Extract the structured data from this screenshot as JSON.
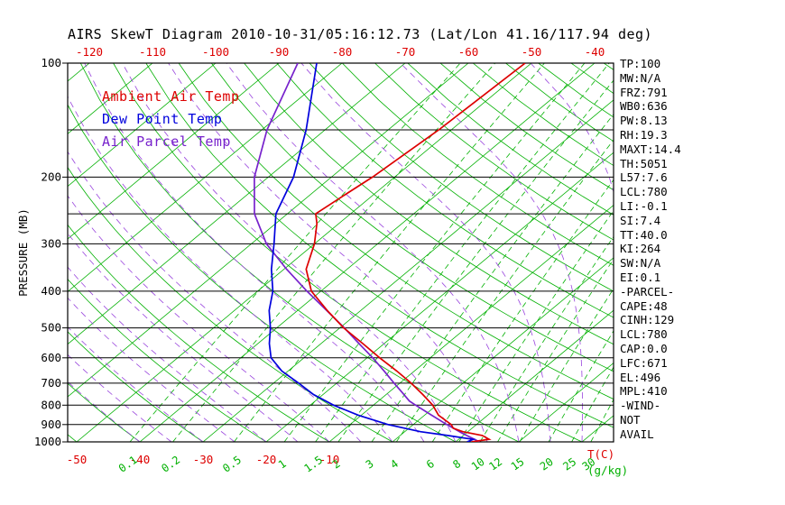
{
  "title": "AIRS SkewT Diagram 2010-10-31/05:16:12.73 (Lat/Lon 41.16/117.94 deg)",
  "colors": {
    "temp_curve": "#dd0000",
    "dewpoint_curve": "#0000dd",
    "parcel_curve": "#7722cc",
    "isotherm": "#00b000",
    "mixing_ratio": "#00b000",
    "moist_adiabat": "#9944dd",
    "axis_text_temp": "#dd0000",
    "axis_text_mixing": "#00b000",
    "text": "#000000"
  },
  "axes": {
    "pressure_label": "PRESSURE (MB)",
    "pressure_ticks": [
      100,
      200,
      300,
      400,
      500,
      600,
      700,
      800,
      900,
      1000
    ],
    "pressure_gridlines": [
      100,
      150,
      200,
      250,
      300,
      400,
      500,
      600,
      700,
      800,
      900,
      1000
    ],
    "top_temp_labels": [
      -120,
      -110,
      -100,
      -90,
      -80,
      -70,
      -60,
      -50,
      -40
    ],
    "bottom_temp_labels": [
      -50,
      -40,
      -30,
      -20,
      -10
    ],
    "mixing_ratio_labels": [
      0.1,
      0.2,
      0.5,
      1,
      1.5,
      2,
      3,
      4,
      6,
      8,
      10,
      12,
      15,
      20,
      25,
      30
    ],
    "temp_unit_label": "T(C)",
    "mixing_unit_label": "(g/kg)"
  },
  "legend": [
    {
      "label": "Ambient Air Temp",
      "color_key": "temp_curve"
    },
    {
      "label": "Dew Point Temp",
      "color_key": "dewpoint_curve"
    },
    {
      "label": "Air Parcel Temp",
      "color_key": "parcel_curve"
    }
  ],
  "stats": [
    "TP:100",
    "MW:N/A",
    "FRZ:791",
    "WB0:636",
    "PW:8.13",
    "RH:19.3",
    "MAXT:14.4",
    "TH:5051",
    "L57:7.6",
    "LCL:780",
    "LI:-0.1",
    "SI:7.4",
    "TT:40.0",
    "KI:264",
    "SW:N/A",
    "EI:0.1",
    "-PARCEL-",
    "CAPE:48",
    "CINH:129",
    "LCL:780",
    "CAP:0.0",
    "LFC:671",
    "EL:496",
    "MPL:410",
    "-WIND-",
    "NOT",
    "AVAIL"
  ],
  "chart_data": {
    "type": "line",
    "title": "AIRS SkewT Diagram 2010-10-31/05:16:12.73",
    "x_axis": "temperature_C_skewed",
    "y_axis": "pressure_mb_log_scale",
    "pressure_range_mb": [
      100,
      1000
    ],
    "top_axis_temp_range_c": [
      -120,
      -40
    ],
    "bottom_axis_temp_range_c": [
      -50,
      35
    ],
    "series": [
      {
        "name": "Ambient Air Temp",
        "color_key": "temp_curve",
        "points_p_t": [
          [
            1000,
            12.5
          ],
          [
            984,
            14.8
          ],
          [
            962,
            13.0
          ],
          [
            940,
            9.2
          ],
          [
            920,
            7.0
          ],
          [
            900,
            6.0
          ],
          [
            850,
            2.2
          ],
          [
            800,
            -0.6
          ],
          [
            750,
            -4.2
          ],
          [
            700,
            -8.2
          ],
          [
            650,
            -12.8
          ],
          [
            600,
            -18.0
          ],
          [
            550,
            -23.4
          ],
          [
            500,
            -29.4
          ],
          [
            450,
            -35.3
          ],
          [
            400,
            -41.5
          ],
          [
            350,
            -46.5
          ],
          [
            300,
            -50.0
          ],
          [
            265,
            -53.5
          ],
          [
            250,
            -55.5
          ],
          [
            225,
            -54.6
          ],
          [
            200,
            -53.5
          ],
          [
            150,
            -52.0
          ],
          [
            100,
            -51.0
          ]
        ]
      },
      {
        "name": "Dew Point Temp",
        "color_key": "dewpoint_curve",
        "points_p_t": [
          [
            1000,
            11.8
          ],
          [
            985,
            12.3
          ],
          [
            962,
            7.5
          ],
          [
            940,
            2.5
          ],
          [
            900,
            -4.0
          ],
          [
            850,
            -10.5
          ],
          [
            800,
            -16.3
          ],
          [
            750,
            -21.5
          ],
          [
            700,
            -26.0
          ],
          [
            650,
            -31.0
          ],
          [
            600,
            -35.2
          ],
          [
            550,
            -38.2
          ],
          [
            500,
            -41.0
          ],
          [
            450,
            -44.5
          ],
          [
            400,
            -47.6
          ],
          [
            350,
            -52.0
          ],
          [
            300,
            -56.4
          ],
          [
            250,
            -61.8
          ],
          [
            200,
            -66.0
          ],
          [
            150,
            -73.0
          ],
          [
            100,
            -84.0
          ]
        ]
      },
      {
        "name": "Air Parcel Temp",
        "color_key": "parcel_curve",
        "points_p_t": [
          [
            1000,
            13.8
          ],
          [
            950,
            9.5
          ],
          [
            900,
            5.3
          ],
          [
            850,
            1.1
          ],
          [
            800,
            -3.3
          ],
          [
            780,
            -5.1
          ],
          [
            740,
            -7.9
          ],
          [
            700,
            -10.9
          ],
          [
            650,
            -14.8
          ],
          [
            600,
            -19.1
          ],
          [
            550,
            -24.0
          ],
          [
            500,
            -29.3
          ],
          [
            450,
            -35.4
          ],
          [
            400,
            -42.2
          ],
          [
            350,
            -49.6
          ],
          [
            300,
            -57.6
          ],
          [
            250,
            -65.2
          ],
          [
            200,
            -72.2
          ],
          [
            150,
            -79.2
          ],
          [
            100,
            -87.0
          ]
        ]
      }
    ],
    "grid": {
      "isotherms_c": {
        "min": -160,
        "max": 40,
        "step": 10
      },
      "dry_adiabats_theta_c": [
        -60,
        -50,
        -40,
        -30,
        -20,
        -10,
        0,
        10,
        20,
        30,
        40,
        50,
        60,
        70,
        80,
        90,
        100,
        110,
        120,
        130,
        140,
        150,
        160,
        170,
        180,
        190,
        200
      ],
      "moist_adiabats_start_c": [
        -40,
        -35,
        -30,
        -25,
        -20,
        -15,
        -10,
        -5,
        0,
        5,
        10,
        15,
        20,
        25,
        30,
        35,
        40,
        45,
        50
      ],
      "mixing_ratio_g_kg": [
        0.1,
        0.2,
        0.5,
        1,
        1.5,
        2,
        3,
        4,
        6,
        8,
        10,
        12,
        15,
        20,
        25,
        30
      ]
    }
  }
}
